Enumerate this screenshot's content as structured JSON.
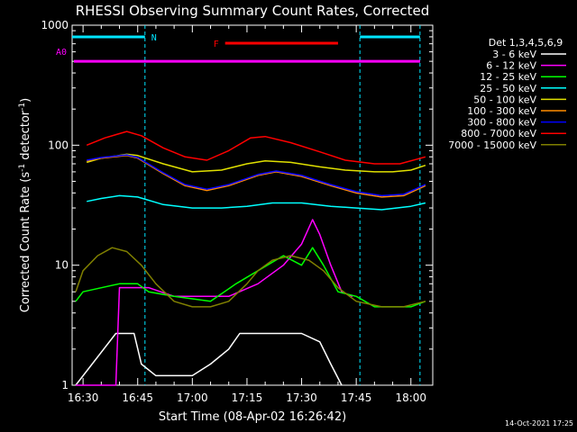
{
  "chart_data": {
    "type": "line",
    "title": "RHESSI Observing Summary Count Rates, Corrected",
    "xlabel": "Start Time (08-Apr-02 16:26:42)",
    "ylabel_main": "Corrected Count Rate (s",
    "ylabel_sup1": "-1",
    "ylabel_mid": " detector",
    "ylabel_sup2": "-1",
    "ylabel_end": ")",
    "yscale": "log",
    "ylim": [
      1,
      1000
    ],
    "xlim_minutes": [
      16.45,
      18.1
    ],
    "x_ticks": [
      "16:30",
      "16:45",
      "17:00",
      "17:15",
      "17:30",
      "17:45",
      "18:00"
    ],
    "y_ticks": [
      "1",
      "10",
      "100",
      "1000"
    ],
    "legend_title": "Det 1,3,4,5,6,9",
    "legend_position": "right",
    "footer": "14-Oct-2021 17:25",
    "annotations": {
      "n_label": "N",
      "f_label": "F",
      "a0_label": "A0"
    },
    "colors": {
      "bg": "#000000",
      "axis": "#ffffff",
      "night": "#00e5ff",
      "flare": "#ff0000",
      "attenuator": "#ff00ff"
    },
    "night_bars": [
      [
        "16:26:42",
        "16:47:00"
      ],
      [
        "17:46:00",
        "18:02:30"
      ]
    ],
    "flare_bar": [
      "17:09:00",
      "17:40:00"
    ],
    "attenuator_level": 500,
    "series": [
      {
        "name": "3 - 6 keV",
        "label": "3 - 6 keV",
        "color": "#ffffff",
        "points": [
          [
            "16:28",
            1
          ],
          [
            "16:39",
            2.7
          ],
          [
            "16:44",
            2.7
          ],
          [
            "16:46",
            1.5
          ],
          [
            "16:50",
            1.2
          ],
          [
            "17:00",
            1.2
          ],
          [
            "17:05",
            1.5
          ],
          [
            "17:10",
            2.0
          ],
          [
            "17:13",
            2.7
          ],
          [
            "17:25",
            2.7
          ],
          [
            "17:30",
            2.7
          ],
          [
            "17:35",
            2.3
          ],
          [
            "17:38",
            1.5
          ],
          [
            "17:41",
            1
          ]
        ]
      },
      {
        "name": "6 - 12 keV",
        "label": "6 - 12 keV",
        "color": "#ff00ff",
        "points": [
          [
            "16:28",
            1
          ],
          [
            "16:39",
            1
          ],
          [
            "16:40",
            6.5
          ],
          [
            "16:44",
            6.5
          ],
          [
            "16:48",
            6.5
          ],
          [
            "16:55",
            5.5
          ],
          [
            "17:00",
            5.5
          ],
          [
            "17:10",
            5.5
          ],
          [
            "17:18",
            7
          ],
          [
            "17:25",
            10
          ],
          [
            "17:30",
            15
          ],
          [
            "17:33",
            24
          ],
          [
            "17:35",
            18
          ],
          [
            "17:38",
            10
          ],
          [
            "17:41",
            6
          ],
          [
            "17:44",
            5.5
          ]
        ]
      },
      {
        "name": "12 - 25 keV",
        "label": "12 - 25 keV",
        "color": "#00ff00",
        "points": [
          [
            "16:28",
            5
          ],
          [
            "16:30",
            6
          ],
          [
            "16:40",
            7
          ],
          [
            "16:45",
            7
          ],
          [
            "16:48",
            6
          ],
          [
            "16:55",
            5.5
          ],
          [
            "17:05",
            5
          ],
          [
            "17:12",
            7
          ],
          [
            "17:18",
            9
          ],
          [
            "17:25",
            12
          ],
          [
            "17:30",
            10
          ],
          [
            "17:33",
            14
          ],
          [
            "17:36",
            10
          ],
          [
            "17:40",
            6
          ],
          [
            "17:45",
            5.5
          ],
          [
            "17:50",
            4.5
          ],
          [
            "18:00",
            4.5
          ],
          [
            "18:04",
            5
          ]
        ]
      },
      {
        "name": "25 - 50 keV",
        "label": "25 - 50 keV",
        "color": "#00ffff",
        "points": [
          [
            "16:31",
            34
          ],
          [
            "16:35",
            36
          ],
          [
            "16:40",
            38
          ],
          [
            "16:45",
            37
          ],
          [
            "16:52",
            32
          ],
          [
            "17:00",
            30
          ],
          [
            "17:08",
            30
          ],
          [
            "17:15",
            31
          ],
          [
            "17:22",
            33
          ],
          [
            "17:30",
            33
          ],
          [
            "17:38",
            31
          ],
          [
            "17:45",
            30
          ],
          [
            "17:52",
            29
          ],
          [
            "18:00",
            31
          ],
          [
            "18:04",
            33
          ]
        ]
      },
      {
        "name": "50 - 100 keV",
        "label": "50 - 100 keV",
        "color": "#e0e000",
        "points": [
          [
            "16:31",
            72
          ],
          [
            "16:35",
            78
          ],
          [
            "16:42",
            84
          ],
          [
            "16:45",
            82
          ],
          [
            "16:52",
            70
          ],
          [
            "17:00",
            60
          ],
          [
            "17:08",
            62
          ],
          [
            "17:15",
            70
          ],
          [
            "17:20",
            74
          ],
          [
            "17:27",
            72
          ],
          [
            "17:35",
            66
          ],
          [
            "17:42",
            62
          ],
          [
            "17:50",
            60
          ],
          [
            "17:55",
            60
          ],
          [
            "18:00",
            62
          ],
          [
            "18:04",
            68
          ]
        ]
      },
      {
        "name": "100 - 300 keV",
        "label": "100 - 300 keV",
        "color": "#ff8c00",
        "points": [
          [
            "16:31",
            74
          ],
          [
            "16:35",
            78
          ],
          [
            "16:42",
            82
          ],
          [
            "16:45",
            78
          ],
          [
            "16:52",
            58
          ],
          [
            "16:58",
            46
          ],
          [
            "17:04",
            42
          ],
          [
            "17:10",
            46
          ],
          [
            "17:18",
            56
          ],
          [
            "17:23",
            60
          ],
          [
            "17:30",
            55
          ],
          [
            "17:38",
            46
          ],
          [
            "17:45",
            40
          ],
          [
            "17:52",
            37
          ],
          [
            "17:58",
            38
          ],
          [
            "18:04",
            46
          ]
        ]
      },
      {
        "name": "300 - 800 keV",
        "label": "300 - 800 keV",
        "color": "#0000ff",
        "points": [
          [
            "16:31",
            75
          ],
          [
            "16:35",
            79
          ],
          [
            "16:42",
            83
          ],
          [
            "16:45",
            79
          ],
          [
            "16:52",
            59
          ],
          [
            "16:58",
            47
          ],
          [
            "17:04",
            43
          ],
          [
            "17:10",
            47
          ],
          [
            "17:18",
            57
          ],
          [
            "17:23",
            61
          ],
          [
            "17:30",
            56
          ],
          [
            "17:38",
            47
          ],
          [
            "17:45",
            41
          ],
          [
            "17:52",
            38
          ],
          [
            "17:58",
            39
          ],
          [
            "18:04",
            47
          ]
        ]
      },
      {
        "name": "800 - 7000 keV",
        "label": "800 - 7000 keV",
        "color": "#ff0000",
        "points": [
          [
            "16:31",
            100
          ],
          [
            "16:36",
            115
          ],
          [
            "16:42",
            130
          ],
          [
            "16:46",
            120
          ],
          [
            "16:52",
            95
          ],
          [
            "16:58",
            80
          ],
          [
            "17:04",
            75
          ],
          [
            "17:10",
            90
          ],
          [
            "17:16",
            115
          ],
          [
            "17:20",
            118
          ],
          [
            "17:27",
            105
          ],
          [
            "17:35",
            88
          ],
          [
            "17:42",
            75
          ],
          [
            "17:50",
            70
          ],
          [
            "17:57",
            70
          ],
          [
            "18:04",
            80
          ]
        ]
      },
      {
        "name": "7000 - 15000 keV",
        "label": "7000 - 15000 keV",
        "color": "#808000",
        "points": [
          [
            "16:28",
            6
          ],
          [
            "16:30",
            9
          ],
          [
            "16:34",
            12
          ],
          [
            "16:38",
            14
          ],
          [
            "16:42",
            13
          ],
          [
            "16:46",
            10
          ],
          [
            "16:50",
            7
          ],
          [
            "16:55",
            5
          ],
          [
            "17:00",
            4.5
          ],
          [
            "17:05",
            4.5
          ],
          [
            "17:10",
            5
          ],
          [
            "17:15",
            7
          ],
          [
            "17:18",
            9
          ],
          [
            "17:22",
            11
          ],
          [
            "17:27",
            12
          ],
          [
            "17:32",
            11
          ],
          [
            "17:36",
            9
          ],
          [
            "17:40",
            6.5
          ],
          [
            "17:45",
            5
          ],
          [
            "17:52",
            4.5
          ],
          [
            "17:58",
            4.5
          ],
          [
            "18:04",
            5
          ]
        ]
      }
    ]
  }
}
